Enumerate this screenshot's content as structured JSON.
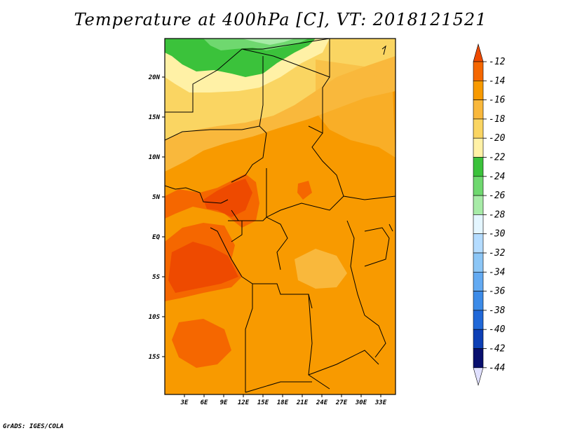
{
  "title": "Temperature at 400hPa [C], VT: 2018121521",
  "credit": "GrADS: IGES/COLA",
  "map": {
    "lat_labels": [
      "20N",
      "15N",
      "10N",
      "5N",
      "EQ",
      "5S",
      "10S",
      "15S"
    ],
    "lon_labels": [
      "3E",
      "6E",
      "9E",
      "12E",
      "15E",
      "18E",
      "21E",
      "24E",
      "27E",
      "30E",
      "33E"
    ],
    "lon_range": [
      0,
      35
    ],
    "lat_range": [
      -20,
      24.5
    ]
  },
  "colorbar": {
    "labels": [
      "-12",
      "-14",
      "-16",
      "-18",
      "-20",
      "-22",
      "-24",
      "-26",
      "-28",
      "-30",
      "-32",
      "-34",
      "-36",
      "-38",
      "-40",
      "-42",
      "-44"
    ],
    "colors": [
      "#ee4a00",
      "#f56700",
      "#f89a00",
      "#f9b83c",
      "#fad562",
      "#fff1a6",
      "#3bc23b",
      "#6fd86f",
      "#a7eba7",
      "#e4f6ff",
      "#b4dcff",
      "#8cc6f6",
      "#63aaf2",
      "#3c8be8",
      "#2068d8",
      "#0d3fb5",
      "#080f6e",
      "#e0e0ff"
    ]
  }
}
